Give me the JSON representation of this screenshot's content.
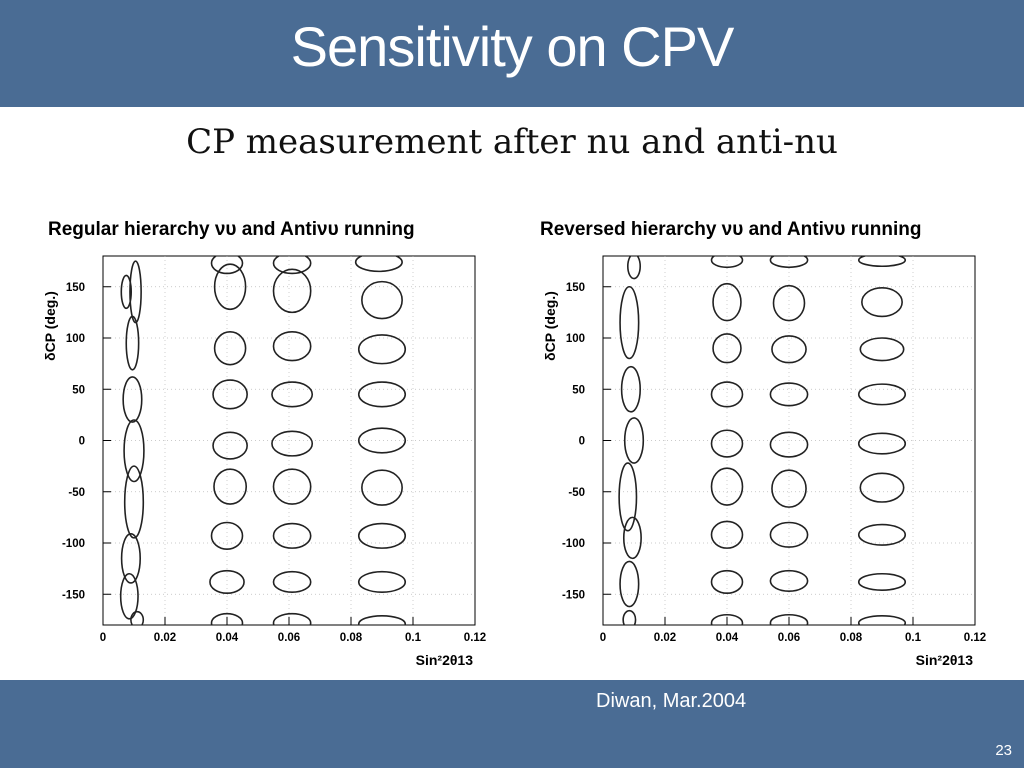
{
  "slide": {
    "title": "Sensitivity on CPV",
    "figure_title": "CP measurement after nu and anti-nu",
    "credit": "Diwan, Mar.2004",
    "page_number": "23",
    "colors": {
      "header_bg": "#4a6c94",
      "text_on_header": "#ffffff",
      "plot_line": "#222222",
      "grid": "#bbbbbb"
    }
  },
  "chart_data": [
    {
      "type": "scatter",
      "title": "Regular hierarchy νυ and Antiνυ running",
      "xlabel": "Sin²2θ13",
      "ylabel": "δCP (deg.)",
      "xlim": [
        0,
        0.12
      ],
      "ylim": [
        -180,
        180
      ],
      "x_ticks": [
        "0",
        "0.02",
        "0.04",
        "0.06",
        "0.08",
        "0.1",
        "0.12"
      ],
      "y_ticks": [
        "150",
        "100",
        "50",
        "0",
        "-50",
        "-100",
        "-150"
      ],
      "grid": true,
      "series": [
        {
          "values": [
            {
              "x": 0.041,
              "y": 150,
              "rx": 0.005,
              "ry": 22
            },
            {
              "x": 0.041,
              "y": 90,
              "rx": 0.005,
              "ry": 16
            },
            {
              "x": 0.041,
              "y": 45,
              "rx": 0.0055,
              "ry": 14
            },
            {
              "x": 0.041,
              "y": -5,
              "rx": 0.0055,
              "ry": 13
            },
            {
              "x": 0.041,
              "y": -45,
              "rx": 0.0052,
              "ry": 17
            },
            {
              "x": 0.04,
              "y": -93,
              "rx": 0.005,
              "ry": 13
            },
            {
              "x": 0.04,
              "y": -138,
              "rx": 0.0055,
              "ry": 11
            },
            {
              "x": 0.04,
              "y": 173,
              "rx": 0.005,
              "ry": 10
            },
            {
              "x": 0.04,
              "y": -178,
              "rx": 0.005,
              "ry": 9
            }
          ]
        },
        {
          "values": [
            {
              "x": 0.061,
              "y": 146,
              "rx": 0.006,
              "ry": 21
            },
            {
              "x": 0.061,
              "y": 92,
              "rx": 0.006,
              "ry": 14
            },
            {
              "x": 0.061,
              "y": 45,
              "rx": 0.0065,
              "ry": 12
            },
            {
              "x": 0.061,
              "y": -3,
              "rx": 0.0065,
              "ry": 12
            },
            {
              "x": 0.061,
              "y": -45,
              "rx": 0.006,
              "ry": 17
            },
            {
              "x": 0.061,
              "y": -93,
              "rx": 0.006,
              "ry": 12
            },
            {
              "x": 0.061,
              "y": -138,
              "rx": 0.006,
              "ry": 10
            },
            {
              "x": 0.061,
              "y": 173,
              "rx": 0.006,
              "ry": 10
            },
            {
              "x": 0.061,
              "y": -178,
              "rx": 0.006,
              "ry": 9
            }
          ]
        },
        {
          "values": [
            {
              "x": 0.09,
              "y": 137,
              "rx": 0.0065,
              "ry": 18
            },
            {
              "x": 0.09,
              "y": 89,
              "rx": 0.0075,
              "ry": 14
            },
            {
              "x": 0.09,
              "y": 45,
              "rx": 0.0075,
              "ry": 12
            },
            {
              "x": 0.09,
              "y": 0,
              "rx": 0.0075,
              "ry": 12
            },
            {
              "x": 0.09,
              "y": -46,
              "rx": 0.0065,
              "ry": 17
            },
            {
              "x": 0.09,
              "y": -93,
              "rx": 0.0075,
              "ry": 12
            },
            {
              "x": 0.09,
              "y": -138,
              "rx": 0.0075,
              "ry": 10
            },
            {
              "x": 0.089,
              "y": 174,
              "rx": 0.0075,
              "ry": 9
            },
            {
              "x": 0.09,
              "y": -179,
              "rx": 0.0075,
              "ry": 8
            }
          ]
        },
        {
          "values": [
            {
              "x": 0.0075,
              "y": 145,
              "rx": 0.0016,
              "ry": 16
            },
            {
              "x": 0.0105,
              "y": 145,
              "rx": 0.0018,
              "ry": 30
            },
            {
              "x": 0.0095,
              "y": 95,
              "rx": 0.002,
              "ry": 26
            },
            {
              "x": 0.0095,
              "y": 40,
              "rx": 0.003,
              "ry": 22
            },
            {
              "x": 0.01,
              "y": -10,
              "rx": 0.0032,
              "ry": 30
            },
            {
              "x": 0.01,
              "y": -60,
              "rx": 0.003,
              "ry": 35
            },
            {
              "x": 0.009,
              "y": -115,
              "rx": 0.003,
              "ry": 24
            },
            {
              "x": 0.0085,
              "y": -152,
              "rx": 0.0028,
              "ry": 22
            },
            {
              "x": 0.011,
              "y": -175,
              "rx": 0.002,
              "ry": 8
            }
          ]
        }
      ]
    },
    {
      "type": "scatter",
      "title": "Reversed hierarchy νυ and Antiνυ running",
      "xlabel": "Sin²2θ13",
      "ylabel": "δCP (deg.)",
      "xlim": [
        0,
        0.12
      ],
      "ylim": [
        -180,
        180
      ],
      "x_ticks": [
        "0",
        "0.02",
        "0.04",
        "0.06",
        "0.08",
        "0.1",
        "0.12"
      ],
      "y_ticks": [
        "150",
        "100",
        "50",
        "0",
        "-50",
        "-100",
        "-150"
      ],
      "grid": true,
      "series": [
        {
          "values": [
            {
              "x": 0.04,
              "y": 135,
              "rx": 0.0045,
              "ry": 18
            },
            {
              "x": 0.04,
              "y": 90,
              "rx": 0.0045,
              "ry": 14
            },
            {
              "x": 0.04,
              "y": 45,
              "rx": 0.005,
              "ry": 12
            },
            {
              "x": 0.04,
              "y": -3,
              "rx": 0.005,
              "ry": 13
            },
            {
              "x": 0.04,
              "y": -45,
              "rx": 0.005,
              "ry": 18
            },
            {
              "x": 0.04,
              "y": -92,
              "rx": 0.005,
              "ry": 13
            },
            {
              "x": 0.04,
              "y": -138,
              "rx": 0.005,
              "ry": 11
            },
            {
              "x": 0.04,
              "y": 176,
              "rx": 0.005,
              "ry": 7
            },
            {
              "x": 0.04,
              "y": -178,
              "rx": 0.005,
              "ry": 8
            }
          ]
        },
        {
          "values": [
            {
              "x": 0.06,
              "y": 134,
              "rx": 0.005,
              "ry": 17
            },
            {
              "x": 0.06,
              "y": 89,
              "rx": 0.0055,
              "ry": 13
            },
            {
              "x": 0.06,
              "y": 45,
              "rx": 0.006,
              "ry": 11
            },
            {
              "x": 0.06,
              "y": -4,
              "rx": 0.006,
              "ry": 12
            },
            {
              "x": 0.06,
              "y": -47,
              "rx": 0.0055,
              "ry": 18
            },
            {
              "x": 0.06,
              "y": -92,
              "rx": 0.006,
              "ry": 12
            },
            {
              "x": 0.06,
              "y": -137,
              "rx": 0.006,
              "ry": 10
            },
            {
              "x": 0.06,
              "y": 176,
              "rx": 0.006,
              "ry": 7
            },
            {
              "x": 0.06,
              "y": -178,
              "rx": 0.006,
              "ry": 8
            }
          ]
        },
        {
          "values": [
            {
              "x": 0.09,
              "y": 135,
              "rx": 0.0065,
              "ry": 14
            },
            {
              "x": 0.09,
              "y": 89,
              "rx": 0.007,
              "ry": 11
            },
            {
              "x": 0.09,
              "y": 45,
              "rx": 0.0075,
              "ry": 10
            },
            {
              "x": 0.09,
              "y": -3,
              "rx": 0.0075,
              "ry": 10
            },
            {
              "x": 0.09,
              "y": -46,
              "rx": 0.007,
              "ry": 14
            },
            {
              "x": 0.09,
              "y": -92,
              "rx": 0.0075,
              "ry": 10
            },
            {
              "x": 0.09,
              "y": -138,
              "rx": 0.0075,
              "ry": 8
            },
            {
              "x": 0.09,
              "y": 176,
              "rx": 0.0075,
              "ry": 6
            },
            {
              "x": 0.09,
              "y": -178,
              "rx": 0.0075,
              "ry": 7
            }
          ]
        },
        {
          "values": [
            {
              "x": 0.01,
              "y": 170,
              "rx": 0.002,
              "ry": 12
            },
            {
              "x": 0.0085,
              "y": 115,
              "rx": 0.003,
              "ry": 35
            },
            {
              "x": 0.009,
              "y": 50,
              "rx": 0.003,
              "ry": 22
            },
            {
              "x": 0.01,
              "y": 0,
              "rx": 0.003,
              "ry": 22
            },
            {
              "x": 0.008,
              "y": -55,
              "rx": 0.0028,
              "ry": 33
            },
            {
              "x": 0.0095,
              "y": -95,
              "rx": 0.0028,
              "ry": 20
            },
            {
              "x": 0.0085,
              "y": -140,
              "rx": 0.003,
              "ry": 22
            },
            {
              "x": 0.0085,
              "y": -175,
              "rx": 0.002,
              "ry": 9
            }
          ]
        }
      ]
    }
  ]
}
